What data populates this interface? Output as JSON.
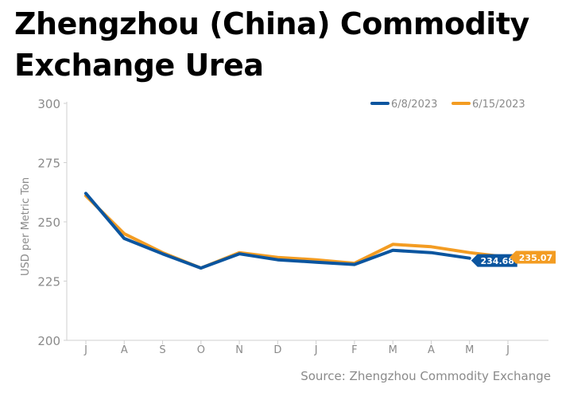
{
  "title": "Zhengzhou (China) Commodity Exchange Urea",
  "source": "Source: Zhengzhou Commodity Exchange",
  "chart_data": {
    "type": "line",
    "title": "Zhengzhou (China) Commodity Exchange Urea",
    "xlabel": "",
    "ylabel": "USD per Metric Ton",
    "categories": [
      "J",
      "A",
      "S",
      "O",
      "N",
      "D",
      "J",
      "F",
      "M",
      "A",
      "M",
      "J"
    ],
    "ylim": [
      200,
      300
    ],
    "yticks": [
      200,
      225,
      250,
      275,
      300
    ],
    "grid": false,
    "legend_position": "top-right",
    "series": [
      {
        "name": "6/8/2023",
        "color": "#0b559f",
        "values": [
          262,
          243,
          236.5,
          230.5,
          236.5,
          234,
          233,
          232,
          238,
          237,
          234.68,
          null
        ],
        "end_label": "234.68"
      },
      {
        "name": "6/15/2023",
        "color": "#f39c22",
        "values": [
          261,
          245,
          237,
          230.5,
          237,
          235,
          234,
          232.5,
          240.5,
          239.5,
          237,
          235.07
        ],
        "end_label": "235.07"
      }
    ]
  }
}
